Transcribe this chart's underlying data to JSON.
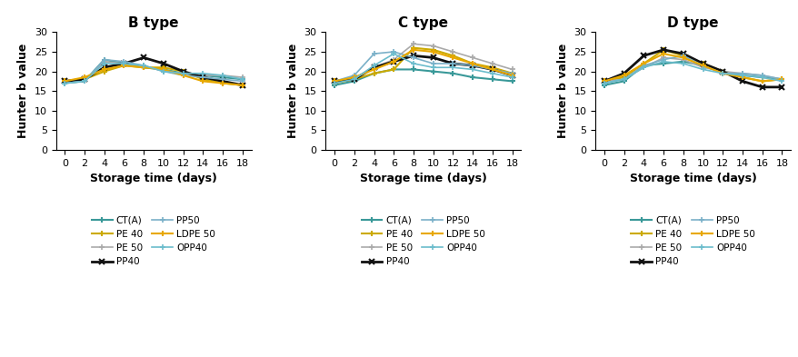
{
  "x": [
    0,
    2,
    4,
    6,
    8,
    10,
    12,
    14,
    16,
    18
  ],
  "titles": [
    "B type",
    "C type",
    "D type"
  ],
  "ylabel": "Hunter b value",
  "xlabel": "Storage time (days)",
  "ylim": [
    0,
    30
  ],
  "yticks": [
    0,
    5,
    10,
    15,
    20,
    25,
    30
  ],
  "xticks": [
    0,
    2,
    4,
    6,
    8,
    10,
    12,
    14,
    16,
    18
  ],
  "series_meta": {
    "CT(A)": {
      "color": "#3a9999",
      "marker": "+",
      "lw": 1.5,
      "ms": 5,
      "mew": 1.5
    },
    "PE 40": {
      "color": "#ccaa00",
      "marker": "+",
      "lw": 1.5,
      "ms": 5,
      "mew": 1.5
    },
    "PE 50": {
      "color": "#aaaaaa",
      "marker": "+",
      "lw": 1.2,
      "ms": 5,
      "mew": 1.2
    },
    "PP40": {
      "color": "#111111",
      "marker": "x",
      "lw": 2.0,
      "ms": 5,
      "mew": 1.5
    },
    "PP50": {
      "color": "#7ab0c8",
      "marker": "+",
      "lw": 1.2,
      "ms": 5,
      "mew": 1.2
    },
    "LDPE 50": {
      "color": "#e8a800",
      "marker": "+",
      "lw": 1.5,
      "ms": 5,
      "mew": 1.5
    },
    "OPP40": {
      "color": "#6bbccc",
      "marker": "+",
      "lw": 1.2,
      "ms": 5,
      "mew": 1.2
    }
  },
  "series_order": [
    "CT(A)",
    "PE 40",
    "PE 50",
    "PP40",
    "PP50",
    "LDPE 50",
    "OPP40"
  ],
  "B": {
    "CT(A)": [
      17.0,
      17.5,
      23.0,
      22.0,
      21.0,
      20.5,
      19.5,
      19.0,
      18.5,
      18.0
    ],
    "PE 40": [
      17.5,
      18.0,
      20.0,
      21.5,
      21.0,
      21.0,
      20.0,
      18.0,
      17.0,
      16.5
    ],
    "PE 50": [
      17.5,
      17.5,
      22.5,
      22.0,
      21.5,
      20.0,
      19.5,
      19.0,
      19.0,
      18.5
    ],
    "PP40": [
      17.5,
      18.0,
      21.0,
      22.0,
      23.5,
      22.0,
      20.0,
      18.5,
      17.5,
      16.5
    ],
    "PP50": [
      17.0,
      17.5,
      23.0,
      22.5,
      21.5,
      20.0,
      19.0,
      18.5,
      18.0,
      17.5
    ],
    "LDPE 50": [
      17.5,
      18.5,
      20.5,
      21.5,
      21.0,
      20.5,
      19.0,
      17.5,
      17.0,
      16.5
    ],
    "OPP40": [
      17.0,
      17.5,
      22.0,
      22.0,
      21.5,
      20.0,
      19.5,
      19.5,
      19.0,
      18.0
    ]
  },
  "C": {
    "CT(A)": [
      16.5,
      17.5,
      19.5,
      20.5,
      20.5,
      20.0,
      19.5,
      18.5,
      18.0,
      17.5
    ],
    "PE 40": [
      17.0,
      18.0,
      19.5,
      20.5,
      26.0,
      25.5,
      24.0,
      22.0,
      21.0,
      19.5
    ],
    "PE 50": [
      17.5,
      18.0,
      21.0,
      23.0,
      27.0,
      26.5,
      25.0,
      23.5,
      22.0,
      20.5
    ],
    "PP40": [
      17.5,
      18.0,
      21.0,
      22.5,
      24.0,
      23.5,
      22.0,
      21.5,
      20.5,
      19.0
    ],
    "PP50": [
      17.5,
      19.0,
      24.5,
      25.0,
      23.5,
      22.0,
      22.0,
      21.5,
      20.5,
      19.5
    ],
    "LDPE 50": [
      17.5,
      18.5,
      20.5,
      22.5,
      25.5,
      25.0,
      23.5,
      22.0,
      20.5,
      19.0
    ],
    "OPP40": [
      17.0,
      18.0,
      21.5,
      24.5,
      22.0,
      21.0,
      21.0,
      20.5,
      19.5,
      18.5
    ]
  },
  "D": {
    "CT(A)": [
      16.5,
      17.5,
      21.5,
      22.0,
      22.5,
      21.5,
      20.0,
      19.0,
      18.5,
      18.0
    ],
    "PE 40": [
      17.5,
      18.5,
      22.0,
      25.5,
      24.0,
      22.0,
      20.0,
      18.5,
      17.5,
      18.0
    ],
    "PE 50": [
      17.5,
      18.0,
      21.0,
      23.5,
      23.0,
      21.0,
      20.0,
      19.5,
      19.0,
      18.0
    ],
    "PP40": [
      17.5,
      19.5,
      24.0,
      25.5,
      24.5,
      22.0,
      20.0,
      17.5,
      16.0,
      16.0
    ],
    "PP50": [
      17.0,
      18.0,
      21.5,
      23.0,
      24.0,
      21.5,
      19.5,
      19.5,
      19.0,
      18.0
    ],
    "LDPE 50": [
      17.5,
      19.0,
      22.0,
      24.5,
      23.5,
      21.5,
      19.5,
      18.5,
      17.5,
      18.0
    ],
    "OPP40": [
      17.0,
      18.0,
      21.0,
      22.5,
      22.0,
      20.5,
      19.5,
      19.0,
      18.5,
      17.5
    ]
  },
  "legend_col1_labels": [
    "CT(A)",
    "PE 50",
    "PP50",
    "OPP40"
  ],
  "legend_col2_labels": [
    "PE 40",
    "PP40",
    "LDPE 50"
  ],
  "legend_display": {
    "CT(A)": "CT(A)",
    "PE 40": "PE 40",
    "PE 50": "PE 50",
    "PP40": "PP40",
    "PP50": "PP50",
    "LDPE 50": "LDPE 50",
    "OPP40": "OPP40"
  }
}
